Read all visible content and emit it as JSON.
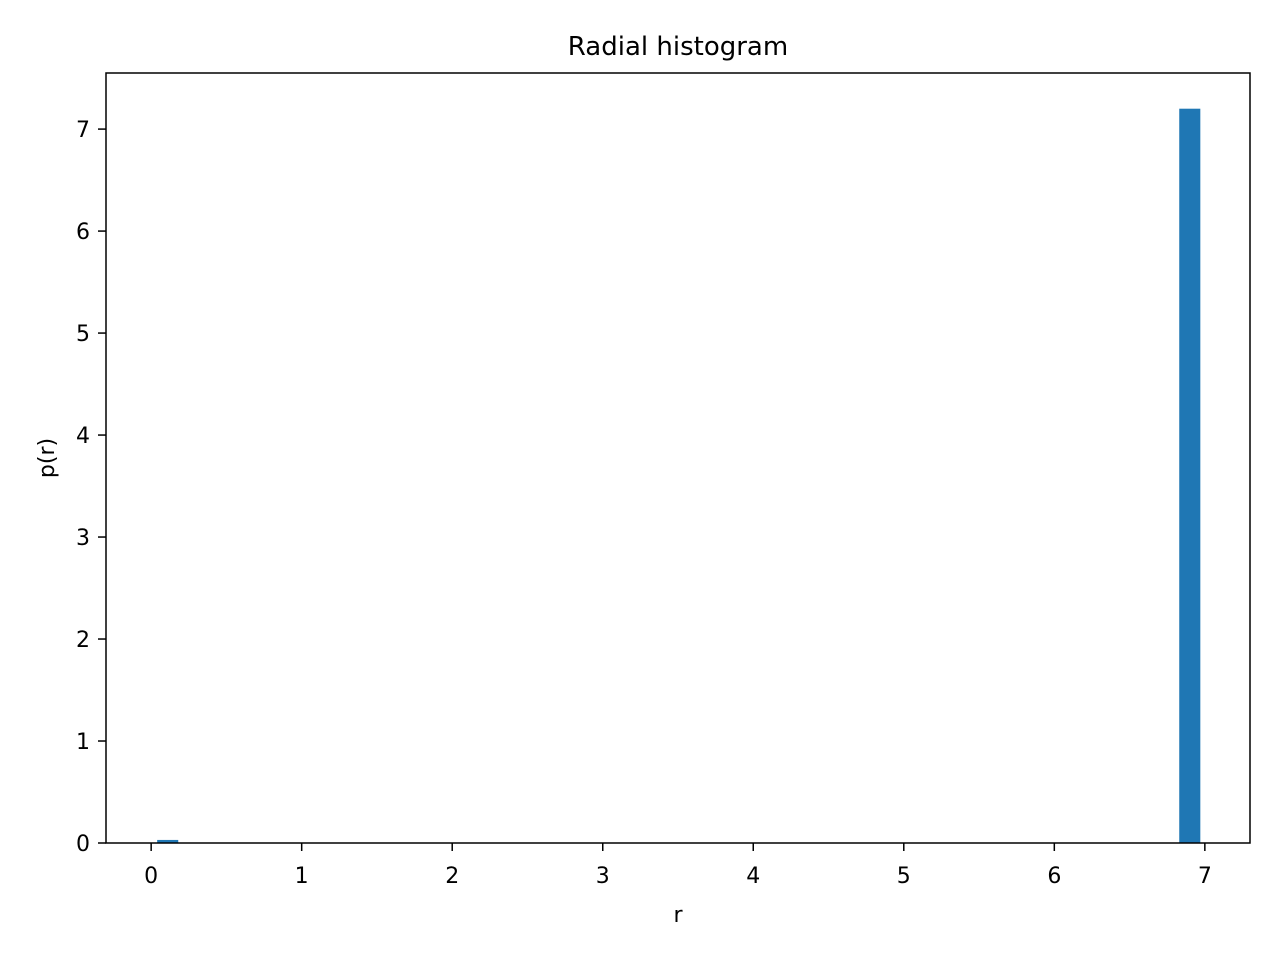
{
  "chart_data": {
    "type": "bar",
    "title": "Radial histogram",
    "xlabel": "r",
    "ylabel": "p(r)",
    "xlim": [
      -0.3,
      7.3
    ],
    "ylim": [
      0,
      7.55
    ],
    "x_ticks": [
      "0",
      "1",
      "2",
      "3",
      "4",
      "5",
      "6",
      "7"
    ],
    "y_ticks": [
      "0",
      "1",
      "2",
      "3",
      "4",
      "5",
      "6",
      "7"
    ],
    "bin_width": 0.14,
    "series": [
      {
        "bins": [
          {
            "x0": 0.04,
            "x1": 0.18,
            "value": 0.03
          },
          {
            "x0": 6.83,
            "x1": 6.97,
            "value": 7.2
          }
        ]
      }
    ],
    "bar_color": "#1f77b4",
    "grid": false
  }
}
